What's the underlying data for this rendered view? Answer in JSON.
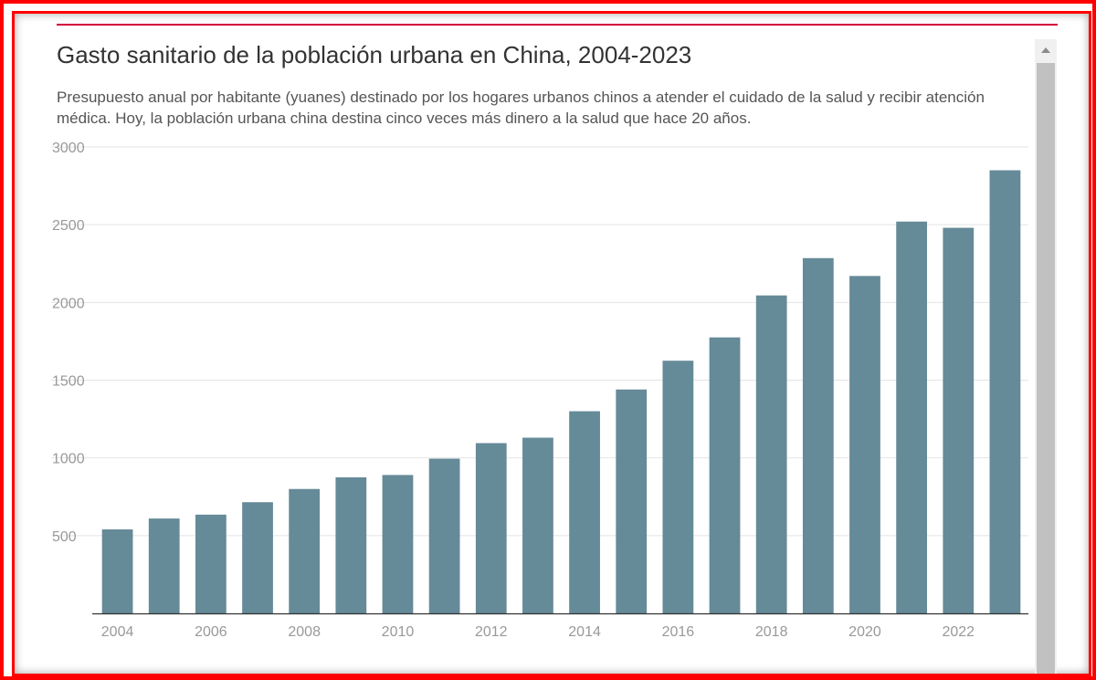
{
  "title": "Gasto sanitario de la población urbana en China, 2004-2023",
  "subtitle": "Presupuesto anual por habitante (yuanes) destinado por los hogares urbanos chinos a atender el cuidado de la salud y recibir atención médica. Hoy, la población urbana china destina cinco veces más dinero a la salud que hace 20 años.",
  "colors": {
    "bar": "#658a98",
    "frame": "#ff0000",
    "top_rule": "#d4003b"
  },
  "icons": {
    "scroll_up": "chevron-up-icon"
  },
  "chart_data": {
    "type": "bar",
    "x": [
      2004,
      2005,
      2006,
      2007,
      2008,
      2009,
      2010,
      2011,
      2012,
      2013,
      2014,
      2015,
      2016,
      2017,
      2018,
      2019,
      2020,
      2021,
      2022,
      2023
    ],
    "values": [
      540,
      610,
      635,
      715,
      800,
      875,
      890,
      995,
      1095,
      1130,
      1300,
      1440,
      1625,
      1775,
      2045,
      2285,
      2170,
      2520,
      2480,
      2850
    ],
    "x_tick_labels": [
      "2004",
      "2006",
      "2008",
      "2010",
      "2012",
      "2014",
      "2016",
      "2018",
      "2020",
      "2022"
    ],
    "y_tick_labels": [
      "500",
      "1000",
      "1500",
      "2000",
      "2500",
      "3000"
    ],
    "ylim": [
      0,
      3000
    ],
    "xlabel": "",
    "ylabel": "",
    "grid": true,
    "legend": "none"
  }
}
